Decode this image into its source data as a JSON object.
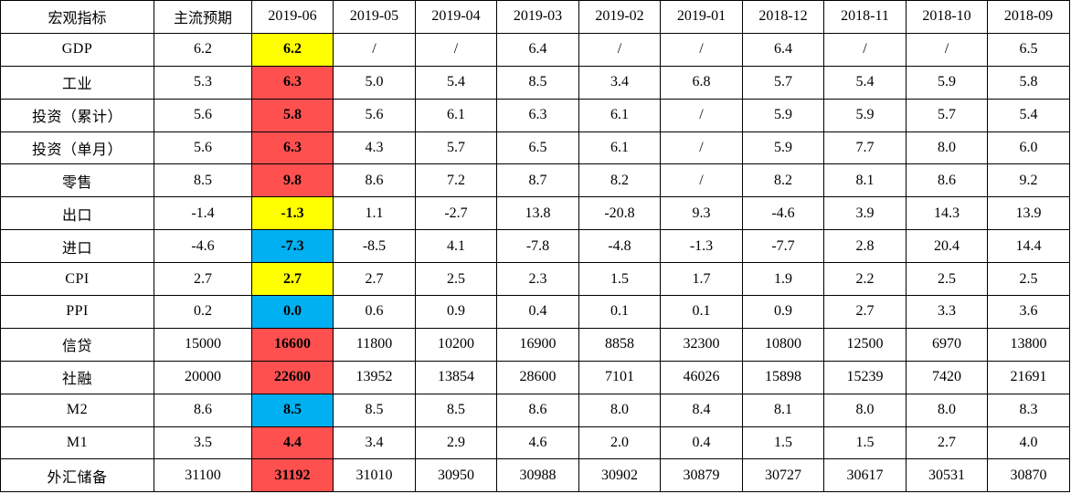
{
  "headers": [
    "宏观指标",
    "主流预期",
    "2019-06",
    "2019-05",
    "2019-04",
    "2019-03",
    "2019-02",
    "2019-01",
    "2018-12",
    "2018-11",
    "2018-10",
    "2018-09"
  ],
  "highlight_colors": {
    "yellow": "#ffff00",
    "red": "#ff5050",
    "blue": "#00b0f0"
  },
  "rows": [
    {
      "indicator": "GDP",
      "expected": "6.2",
      "current": "6.2",
      "current_color": "yellow",
      "history": [
        "/",
        "/",
        "6.4",
        "/",
        "/",
        "6.4",
        "/",
        "/",
        "6.5"
      ]
    },
    {
      "indicator": "工业",
      "expected": "5.3",
      "current": "6.3",
      "current_color": "red",
      "history": [
        "5.0",
        "5.4",
        "8.5",
        "3.4",
        "6.8",
        "5.7",
        "5.4",
        "5.9",
        "5.8"
      ]
    },
    {
      "indicator": "投资（累计）",
      "expected": "5.6",
      "current": "5.8",
      "current_color": "red",
      "history": [
        "5.6",
        "6.1",
        "6.3",
        "6.1",
        "/",
        "5.9",
        "5.9",
        "5.7",
        "5.4"
      ]
    },
    {
      "indicator": "投资（单月）",
      "expected": "5.6",
      "current": "6.3",
      "current_color": "red",
      "history": [
        "4.3",
        "5.7",
        "6.5",
        "6.1",
        "/",
        "5.9",
        "7.7",
        "8.0",
        "6.0"
      ]
    },
    {
      "indicator": "零售",
      "expected": "8.5",
      "current": "9.8",
      "current_color": "red",
      "history": [
        "8.6",
        "7.2",
        "8.7",
        "8.2",
        "/",
        "8.2",
        "8.1",
        "8.6",
        "9.2"
      ]
    },
    {
      "indicator": "出口",
      "expected": "-1.4",
      "current": "-1.3",
      "current_color": "yellow",
      "history": [
        "1.1",
        "-2.7",
        "13.8",
        "-20.8",
        "9.3",
        "-4.6",
        "3.9",
        "14.3",
        "13.9"
      ]
    },
    {
      "indicator": "进口",
      "expected": "-4.6",
      "current": "-7.3",
      "current_color": "blue",
      "history": [
        "-8.5",
        "4.1",
        "-7.8",
        "-4.8",
        "-1.3",
        "-7.7",
        "2.8",
        "20.4",
        "14.4"
      ]
    },
    {
      "indicator": "CPI",
      "expected": "2.7",
      "current": "2.7",
      "current_color": "yellow",
      "history": [
        "2.7",
        "2.5",
        "2.3",
        "1.5",
        "1.7",
        "1.9",
        "2.2",
        "2.5",
        "2.5"
      ]
    },
    {
      "indicator": "PPI",
      "expected": "0.2",
      "current": "0.0",
      "current_color": "blue",
      "history": [
        "0.6",
        "0.9",
        "0.4",
        "0.1",
        "0.1",
        "0.9",
        "2.7",
        "3.3",
        "3.6"
      ]
    },
    {
      "indicator": "信贷",
      "expected": "15000",
      "current": "16600",
      "current_color": "red",
      "history": [
        "11800",
        "10200",
        "16900",
        "8858",
        "32300",
        "10800",
        "12500",
        "6970",
        "13800"
      ]
    },
    {
      "indicator": "社融",
      "expected": "20000",
      "current": "22600",
      "current_color": "red",
      "history": [
        "13952",
        "13854",
        "28600",
        "7101",
        "46026",
        "15898",
        "15239",
        "7420",
        "21691"
      ]
    },
    {
      "indicator": "M2",
      "expected": "8.6",
      "current": "8.5",
      "current_color": "blue",
      "history": [
        "8.5",
        "8.5",
        "8.6",
        "8.0",
        "8.4",
        "8.1",
        "8.0",
        "8.0",
        "8.3"
      ]
    },
    {
      "indicator": "M1",
      "expected": "3.5",
      "current": "4.4",
      "current_color": "red",
      "history": [
        "3.4",
        "2.9",
        "4.6",
        "2.0",
        "0.4",
        "1.5",
        "1.5",
        "2.7",
        "4.0"
      ]
    },
    {
      "indicator": "外汇储备",
      "expected": "31100",
      "current": "31192",
      "current_color": "red",
      "history": [
        "31010",
        "30950",
        "30988",
        "30902",
        "30879",
        "30727",
        "30617",
        "30531",
        "30870"
      ]
    }
  ]
}
